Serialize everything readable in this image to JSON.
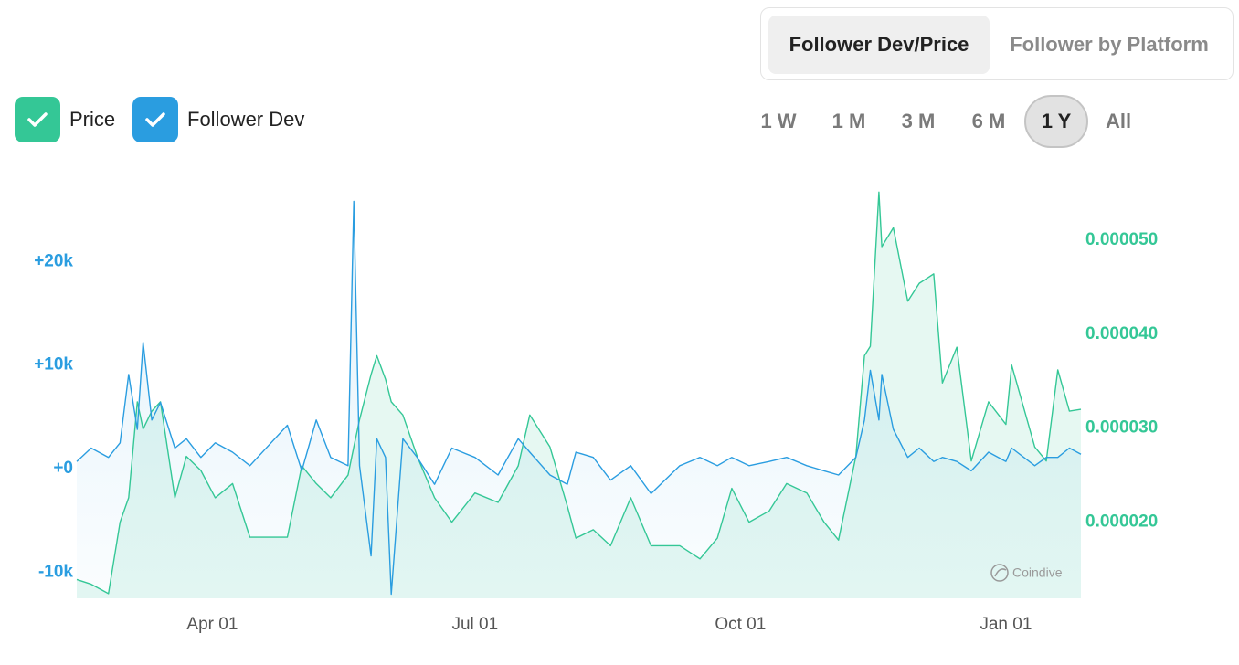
{
  "tabs": [
    "Follower Dev/Price",
    "Follower by Platform"
  ],
  "ranges": [
    "1 W",
    "1 M",
    "3 M",
    "6 M",
    "1 Y",
    "All"
  ],
  "watermark": "Coindive",
  "chart_data": {
    "type": "line",
    "grid": false,
    "x": [
      -47,
      -42,
      -36,
      -32,
      -29,
      -26,
      -24,
      -21,
      -18,
      -13,
      -9,
      -4,
      1,
      7,
      13,
      18,
      26,
      31,
      36,
      41,
      47,
      49,
      51,
      55,
      57,
      60,
      62,
      66,
      71,
      77,
      83,
      91,
      99,
      106,
      110,
      117,
      123,
      126,
      132,
      138,
      145,
      152,
      162,
      169,
      175,
      180,
      186,
      193,
      199,
      206,
      212,
      217,
      223,
      226,
      228,
      231,
      232,
      236,
      241,
      245,
      250,
      253,
      258,
      263,
      269,
      275,
      277,
      285,
      289,
      293,
      297,
      301
    ],
    "xlim": [
      -47,
      301
    ],
    "xticks": [
      {
        "value": 0,
        "label": "Apr 01"
      },
      {
        "value": 91,
        "label": "Jul 01"
      },
      {
        "value": 183,
        "label": "Oct 01"
      },
      {
        "value": 275,
        "label": "Jan 01"
      }
    ],
    "ylim": [
      -12500,
      27600
    ],
    "yticks": [
      {
        "value": -10000,
        "label": "-10k"
      },
      {
        "value": 0,
        "label": "+0"
      },
      {
        "value": 10000,
        "label": "+10k"
      },
      {
        "value": 20000,
        "label": "+20k"
      }
    ],
    "y2lim": [
      1.19e-05,
      5.61e-05
    ],
    "y2ticks": [
      {
        "value": 2e-05,
        "label": "0.000020"
      },
      {
        "value": 3e-05,
        "label": "0.000030"
      },
      {
        "value": 4e-05,
        "label": "0.000040"
      },
      {
        "value": 5e-05,
        "label": "0.000050"
      }
    ],
    "series": [
      {
        "name": "Price",
        "color": "#34c796",
        "axis": "y2",
        "values": [
          1.39e-05,
          1.34e-05,
          1.24e-05,
          2e-05,
          2.26e-05,
          3.28e-05,
          2.99e-05,
          3.18e-05,
          3.28e-05,
          2.26e-05,
          2.7e-05,
          2.55e-05,
          2.26e-05,
          2.41e-05,
          1.84e-05,
          1.84e-05,
          1.84e-05,
          2.6e-05,
          2.41e-05,
          2.26e-05,
          2.5e-05,
          2.8e-05,
          3.09e-05,
          3.57e-05,
          3.77e-05,
          3.52e-05,
          3.28e-05,
          3.14e-05,
          2.7e-05,
          2.26e-05,
          2e-05,
          2.31e-05,
          2.21e-05,
          2.6e-05,
          3.14e-05,
          2.8e-05,
          2.17e-05,
          1.83e-05,
          1.92e-05,
          1.75e-05,
          2.26e-05,
          1.75e-05,
          1.75e-05,
          1.61e-05,
          1.83e-05,
          2.36e-05,
          2e-05,
          2.12e-05,
          2.41e-05,
          2.31e-05,
          2e-05,
          1.81e-05,
          2.7e-05,
          3.77e-05,
          3.87e-05,
          5.51e-05,
          4.93e-05,
          5.13e-05,
          4.35e-05,
          4.54e-05,
          4.64e-05,
          3.48e-05,
          3.86e-05,
          2.65e-05,
          3.28e-05,
          3.04e-05,
          3.67e-05,
          2.8e-05,
          2.65e-05,
          3.62e-05,
          3.18e-05,
          3.2e-05
        ]
      },
      {
        "name": "Follower Dev",
        "color": "#2a9de0",
        "axis": "y",
        "values": [
          700,
          2000,
          1100,
          2500,
          9100,
          3800,
          12200,
          4700,
          6400,
          2000,
          2900,
          1100,
          2500,
          1600,
          300,
          1800,
          4200,
          -200,
          4700,
          1100,
          300,
          25800,
          300,
          -8400,
          2900,
          1100,
          -12100,
          2900,
          1100,
          -1500,
          2000,
          1100,
          -600,
          2900,
          1600,
          -600,
          -1500,
          1600,
          1100,
          -1100,
          300,
          -2400,
          300,
          1100,
          300,
          1100,
          300,
          700,
          1100,
          300,
          -200,
          -600,
          1100,
          4700,
          9500,
          4700,
          9100,
          3800,
          1100,
          2000,
          700,
          1100,
          700,
          -200,
          1600,
          700,
          2000,
          300,
          1100,
          1100,
          2000,
          1400
        ]
      }
    ]
  }
}
